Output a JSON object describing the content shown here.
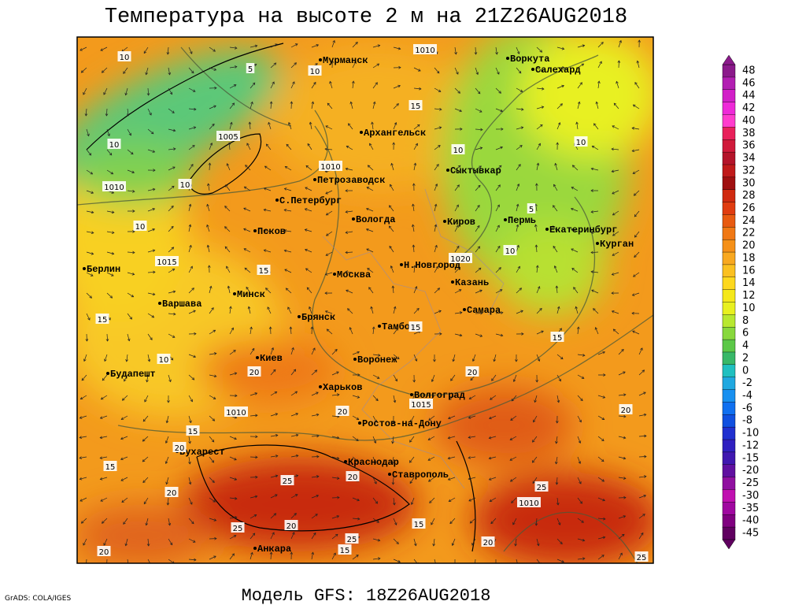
{
  "title": "Температура на высоте 2 м на 21Z26AUG2018",
  "model": "Модель GFS: 18Z26AUG2018",
  "credit": "GrADS: COLA/IGES",
  "cities": [
    "Мурманск",
    "Воркута",
    "Салехард",
    "Архангельск",
    "Сыктывкар",
    "Петрозаводск",
    "С.Петербург",
    "Вологда",
    "Киров",
    "Пермь",
    "Екатеринбург",
    "Курган",
    "Псков",
    "Берлин",
    "Москва",
    "Н.Новгород",
    "Казань",
    "Минск",
    "Варшава",
    "Самара",
    "Брянск",
    "Тамбов",
    "Киев",
    "Воронеж",
    "Будапешт",
    "Харьков",
    "Волгоград",
    "Ростов-на-Дону",
    "Бухарест",
    "Краснодар",
    "Ставрополь",
    "Анкара"
  ],
  "contour_labels": [
    "1010",
    "10",
    "5",
    "10",
    "15",
    "1005",
    "10",
    "1010",
    "10",
    "10",
    "1010",
    "10",
    "5",
    "10",
    "1015",
    "1020",
    "15",
    "10",
    "15",
    "15",
    "15",
    "10",
    "20",
    "20",
    "1015",
    "1010",
    "20",
    "20",
    "15",
    "20",
    "15",
    "20",
    "25",
    "20",
    "25",
    "1010",
    "15",
    "25",
    "20",
    "25",
    "15",
    "20",
    "20",
    "25"
  ],
  "colorbar": {
    "levels": [
      48,
      46,
      44,
      42,
      40,
      38,
      36,
      34,
      32,
      30,
      28,
      26,
      24,
      22,
      20,
      18,
      16,
      14,
      12,
      10,
      8,
      6,
      4,
      2,
      0,
      -2,
      -4,
      -6,
      -8,
      -10,
      -12,
      -15,
      -20,
      -25,
      -30,
      -35,
      -40,
      -45
    ],
    "colors": [
      "#8b1a8b",
      "#b21fb2",
      "#d21fc8",
      "#ee2ad8",
      "#ff3ccd",
      "#e8205a",
      "#d01a3a",
      "#b4142a",
      "#c01a1a",
      "#a01010",
      "#d02a10",
      "#e03c10",
      "#e85a10",
      "#f07814",
      "#f59018",
      "#f8a820",
      "#fbc020",
      "#fdd81e",
      "#f5e81a",
      "#e8f020",
      "#b8e830",
      "#88d83c",
      "#5cc848",
      "#38b868",
      "#20c0c0",
      "#20a8e0",
      "#1890f0",
      "#1070f0",
      "#1050e0",
      "#2030d0",
      "#3020c0",
      "#4018b0",
      "#6010a0",
      "#9010a0",
      "#c010b0",
      "#a008a0",
      "#800080",
      "#600060"
    ]
  }
}
